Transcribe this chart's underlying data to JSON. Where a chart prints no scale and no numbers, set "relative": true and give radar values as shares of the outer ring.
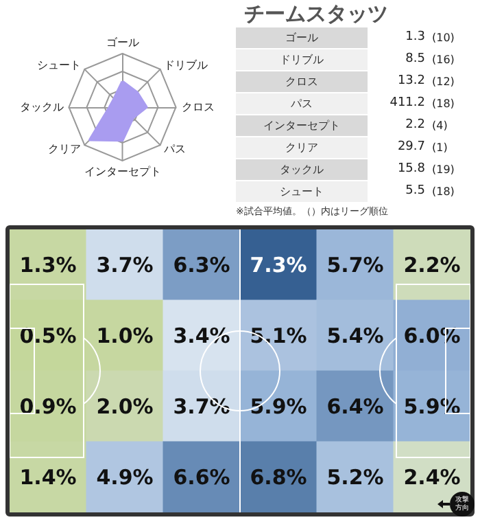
{
  "chart_data": [
    {
      "type": "radar",
      "categories": [
        "ゴール",
        "ドリブル",
        "クロス",
        "パス",
        "インターセプト",
        "クリア",
        "タックル",
        "シュート"
      ],
      "relative": true,
      "series": [
        {
          "color": "#a99cf0",
          "values": [
            0.48,
            0.39,
            0.45,
            0.28,
            0.62,
            0.86,
            0.24,
            0.22
          ]
        }
      ]
    },
    {
      "type": "other",
      "title": "チームスタッツ",
      "categories": [
        "ゴール",
        "ドリブル",
        "クロス",
        "パス",
        "インターセプト",
        "クリア",
        "タックル",
        "シュート"
      ],
      "data_labels": true,
      "series": [
        {
          "values": [
            1.3,
            8.5,
            13.2,
            411.2,
            2.2,
            29.7,
            15.8,
            5.5
          ]
        },
        {
          "values": [
            10,
            16,
            12,
            18,
            4,
            1,
            19,
            18
          ],
          "value_labels": [
            "(10)",
            "(16)",
            "(12)",
            "(18)",
            "(4)",
            "(1)",
            "(19)",
            "(18)"
          ]
        }
      ],
      "annotations": [
        "※試合平均値。（）内はリーグ順位"
      ]
    },
    {
      "type": "heatmap",
      "categories": [
        null,
        null,
        null,
        null,
        null,
        null
      ],
      "y_categories": [
        null,
        null,
        null,
        null
      ],
      "tick_labels": false,
      "cells": [
        [
          1.3,
          3.7,
          6.3,
          7.3,
          5.7,
          2.2
        ],
        [
          0.5,
          1.0,
          3.4,
          5.1,
          5.4,
          6.0
        ],
        [
          0.9,
          2.0,
          3.7,
          5.9,
          6.4,
          5.9
        ],
        [
          1.4,
          4.9,
          6.6,
          6.8,
          5.2,
          2.4
        ]
      ],
      "cell_labels": [
        [
          "1.3%",
          "3.7%",
          "6.3%",
          "7.3%",
          "5.7%",
          "2.2%"
        ],
        [
          "0.5%",
          "1.0%",
          "3.4%",
          "5.1%",
          "5.4%",
          "6.0%"
        ],
        [
          "0.9%",
          "2.0%",
          "3.7%",
          "5.9%",
          "6.4%",
          "5.9%"
        ],
        [
          "1.4%",
          "4.9%",
          "6.6%",
          "6.8%",
          "5.2%",
          "2.4%"
        ]
      ],
      "annotations": [
        "攻撃方向"
      ]
    }
  ]
}
